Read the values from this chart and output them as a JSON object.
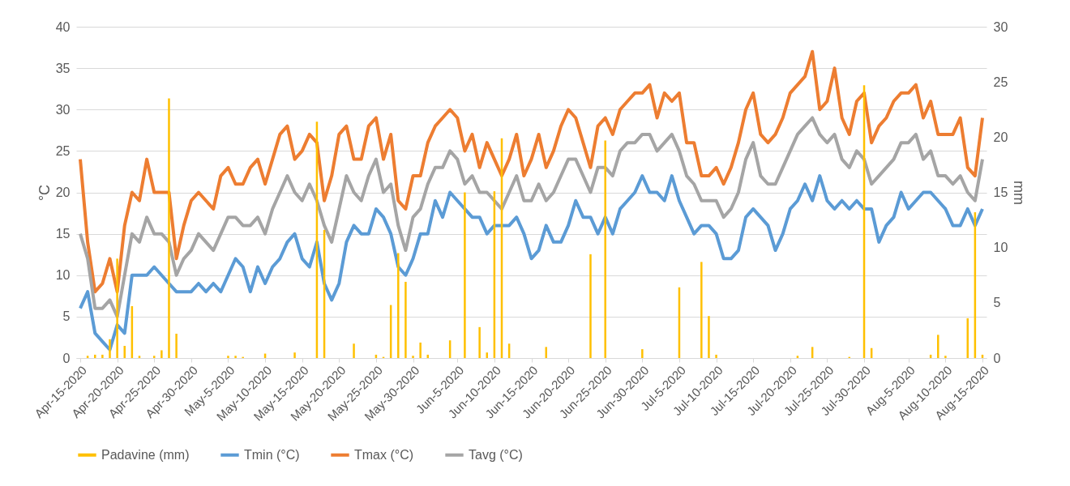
{
  "chart_data": {
    "type": "line",
    "ylabel": "°C",
    "y2label": "mm",
    "x": [
      "2020-04-15",
      "2020-04-16",
      "2020-04-17",
      "2020-04-18",
      "2020-04-19",
      "2020-04-20",
      "2020-04-21",
      "2020-04-22",
      "2020-04-23",
      "2020-04-24",
      "2020-04-25",
      "2020-04-26",
      "2020-04-27",
      "2020-04-28",
      "2020-04-29",
      "2020-04-30",
      "2020-05-01",
      "2020-05-02",
      "2020-05-03",
      "2020-05-04",
      "2020-05-05",
      "2020-05-06",
      "2020-05-07",
      "2020-05-08",
      "2020-05-09",
      "2020-05-10",
      "2020-05-11",
      "2020-05-12",
      "2020-05-13",
      "2020-05-14",
      "2020-05-15",
      "2020-05-16",
      "2020-05-17",
      "2020-05-18",
      "2020-05-19",
      "2020-05-20",
      "2020-05-21",
      "2020-05-22",
      "2020-05-23",
      "2020-05-24",
      "2020-05-25",
      "2020-05-26",
      "2020-05-27",
      "2020-05-28",
      "2020-05-29",
      "2020-05-30",
      "2020-05-31",
      "2020-06-01",
      "2020-06-02",
      "2020-06-03",
      "2020-06-04",
      "2020-06-05",
      "2020-06-06",
      "2020-06-07",
      "2020-06-08",
      "2020-06-09",
      "2020-06-10",
      "2020-06-11",
      "2020-06-12",
      "2020-06-13",
      "2020-06-14",
      "2020-06-15",
      "2020-06-16",
      "2020-06-17",
      "2020-06-18",
      "2020-06-19",
      "2020-06-20",
      "2020-06-21",
      "2020-06-22",
      "2020-06-23",
      "2020-06-24",
      "2020-06-25",
      "2020-06-26",
      "2020-06-27",
      "2020-06-28",
      "2020-06-29",
      "2020-06-30",
      "2020-07-01",
      "2020-07-02",
      "2020-07-03",
      "2020-07-04",
      "2020-07-05",
      "2020-07-06",
      "2020-07-07",
      "2020-07-08",
      "2020-07-09",
      "2020-07-10",
      "2020-07-11",
      "2020-07-12",
      "2020-07-13",
      "2020-07-14",
      "2020-07-15",
      "2020-07-16",
      "2020-07-17",
      "2020-07-18",
      "2020-07-19",
      "2020-07-20",
      "2020-07-21",
      "2020-07-22",
      "2020-07-23",
      "2020-07-24",
      "2020-07-25",
      "2020-07-26",
      "2020-07-27",
      "2020-07-28",
      "2020-07-29",
      "2020-07-30",
      "2020-07-31",
      "2020-08-01",
      "2020-08-02",
      "2020-08-03",
      "2020-08-04",
      "2020-08-05",
      "2020-08-06",
      "2020-08-07",
      "2020-08-08",
      "2020-08-09",
      "2020-08-10",
      "2020-08-11",
      "2020-08-12",
      "2020-08-13",
      "2020-08-14",
      "2020-08-15"
    ],
    "series": [
      {
        "name": "Padavine (mm)",
        "type": "bar",
        "axis": "y2",
        "color": "#ffc000",
        "values": [
          null,
          0.2,
          0.3,
          0.3,
          1.7,
          9,
          1.1,
          4.7,
          0.2,
          null,
          0.2,
          0.7,
          23.5,
          2.2,
          null,
          null,
          null,
          null,
          null,
          null,
          0.2,
          0.2,
          0.1,
          null,
          null,
          0.4,
          null,
          null,
          null,
          0.5,
          null,
          null,
          21.4,
          11.6,
          null,
          null,
          null,
          1.3,
          null,
          null,
          0.3,
          0.1,
          4.8,
          9.5,
          6.9,
          0.2,
          1.4,
          0.3,
          null,
          null,
          1.6,
          null,
          15,
          null,
          2.8,
          0.5,
          15.1,
          19.9,
          1.3,
          null,
          null,
          null,
          null,
          1,
          null,
          null,
          null,
          null,
          null,
          9.4,
          null,
          19.7,
          null,
          null,
          null,
          null,
          0.8,
          null,
          null,
          null,
          null,
          6.4,
          null,
          null,
          8.7,
          3.8,
          0.3,
          null,
          null,
          null,
          null,
          null,
          null,
          null,
          null,
          null,
          null,
          0.2,
          null,
          1,
          null,
          null,
          null,
          null,
          0.1,
          null,
          24.7,
          0.9,
          null,
          null,
          null,
          null,
          null,
          null,
          null,
          0.3,
          2.1,
          0.2,
          null,
          null,
          3.6,
          13.2,
          0.3
        ]
      },
      {
        "name": "Tmin (°C)",
        "color": "#5b9bd5",
        "values": [
          6,
          8,
          3,
          2,
          1,
          4,
          3,
          10,
          10,
          10,
          11,
          10,
          9,
          8,
          8,
          8,
          9,
          8,
          9,
          8,
          10,
          12,
          11,
          8,
          11,
          9,
          11,
          12,
          14,
          15,
          12,
          11,
          14,
          9,
          7,
          9,
          14,
          16,
          15,
          15,
          18,
          17,
          15,
          11,
          10,
          12,
          15,
          15,
          19,
          17,
          20,
          19,
          18,
          17,
          17,
          15,
          16,
          16,
          16,
          17,
          15,
          12,
          13,
          16,
          14,
          14,
          16,
          19,
          17,
          17,
          15,
          17,
          15,
          18,
          19,
          20,
          22,
          20,
          20,
          19,
          22,
          19,
          17,
          15,
          16,
          16,
          15,
          12,
          12,
          13,
          17,
          18,
          17,
          16,
          13,
          15,
          18,
          19,
          21,
          19,
          22,
          19,
          18,
          19,
          18,
          19,
          18,
          18,
          14,
          16,
          17,
          20,
          18,
          19,
          20,
          20,
          19,
          18,
          16,
          16,
          18,
          16,
          18
        ]
      },
      {
        "name": "Tmax (°C)",
        "color": "#ed7d31",
        "values": [
          24,
          14,
          8,
          9,
          12,
          8,
          16,
          20,
          19,
          24,
          20,
          20,
          20,
          12,
          16,
          19,
          20,
          19,
          18,
          22,
          23,
          21,
          21,
          23,
          24,
          21,
          24,
          27,
          28,
          24,
          25,
          27,
          26,
          19,
          22,
          27,
          28,
          24,
          24,
          28,
          29,
          24,
          27,
          19,
          18,
          22,
          22,
          26,
          28,
          29,
          30,
          29,
          25,
          27,
          23,
          26,
          24,
          22,
          24,
          27,
          22,
          24,
          27,
          23,
          25,
          28,
          30,
          29,
          26,
          23,
          28,
          29,
          27,
          30,
          31,
          32,
          32,
          33,
          29,
          32,
          31,
          32,
          26,
          26,
          22,
          22,
          23,
          21,
          23,
          26,
          30,
          32,
          27,
          26,
          27,
          29,
          32,
          33,
          34,
          37,
          30,
          31,
          35,
          29,
          27,
          31,
          32,
          26,
          28,
          29,
          31,
          32,
          32,
          33,
          29,
          31,
          27,
          27,
          27,
          29,
          23,
          22,
          29
        ]
      },
      {
        "name": "Tavg (°C)",
        "color": "#a5a5a5",
        "values": [
          15,
          12,
          6,
          6,
          7,
          5,
          10,
          15,
          14,
          17,
          15,
          15,
          14,
          10,
          12,
          13,
          15,
          14,
          13,
          15,
          17,
          17,
          16,
          16,
          17,
          15,
          18,
          20,
          22,
          20,
          19,
          21,
          19,
          16,
          14,
          18,
          22,
          20,
          19,
          22,
          24,
          20,
          21,
          16,
          13,
          17,
          18,
          21,
          23,
          23,
          25,
          24,
          21,
          22,
          20,
          20,
          19,
          18,
          20,
          22,
          19,
          19,
          21,
          19,
          20,
          22,
          24,
          24,
          22,
          20,
          23,
          23,
          22,
          25,
          26,
          26,
          27,
          27,
          25,
          26,
          27,
          25,
          22,
          21,
          19,
          19,
          19,
          17,
          18,
          20,
          24,
          26,
          22,
          21,
          21,
          23,
          25,
          27,
          28,
          29,
          27,
          26,
          27,
          24,
          23,
          25,
          24,
          21,
          22,
          23,
          24,
          26,
          26,
          27,
          24,
          25,
          22,
          22,
          21,
          22,
          20,
          19,
          24
        ]
      }
    ],
    "xlim": [
      "2020-04-15",
      "2020-08-15"
    ],
    "xticks": [
      {
        "value": "2020-04-15",
        "label": "Apr-15-2020"
      },
      {
        "value": "2020-04-20",
        "label": "Apr-20-2020"
      },
      {
        "value": "2020-04-25",
        "label": "Apr-25-2020"
      },
      {
        "value": "2020-04-30",
        "label": "Apr-30-2020"
      },
      {
        "value": "2020-05-05",
        "label": "May-5-2020"
      },
      {
        "value": "2020-05-10",
        "label": "May-10-2020"
      },
      {
        "value": "2020-05-15",
        "label": "May-15-2020"
      },
      {
        "value": "2020-05-20",
        "label": "May-20-2020"
      },
      {
        "value": "2020-05-25",
        "label": "May-25-2020"
      },
      {
        "value": "2020-05-30",
        "label": "May-30-2020"
      },
      {
        "value": "2020-06-05",
        "label": "Jun-5-2020"
      },
      {
        "value": "2020-06-10",
        "label": "Jun-10-2020"
      },
      {
        "value": "2020-06-15",
        "label": "Jun-15-2020"
      },
      {
        "value": "2020-06-20",
        "label": "Jun-20-2020"
      },
      {
        "value": "2020-06-25",
        "label": "Jun-25-2020"
      },
      {
        "value": "2020-06-30",
        "label": "Jun-30-2020"
      },
      {
        "value": "2020-07-05",
        "label": "Jul-5-2020"
      },
      {
        "value": "2020-07-10",
        "label": "Jul-10-2020"
      },
      {
        "value": "2020-07-15",
        "label": "Jul-15-2020"
      },
      {
        "value": "2020-07-20",
        "label": "Jul-20-2020"
      },
      {
        "value": "2020-07-25",
        "label": "Jul-25-2020"
      },
      {
        "value": "2020-07-30",
        "label": "Jul-30-2020"
      },
      {
        "value": "2020-08-05",
        "label": "Aug-5-2020"
      },
      {
        "value": "2020-08-10",
        "label": "Aug-10-2020"
      },
      {
        "value": "2020-08-15",
        "label": "Aug-15-2020"
      }
    ],
    "ylim": [
      0,
      40
    ],
    "yticks": [
      0,
      5,
      10,
      15,
      20,
      25,
      30,
      35,
      40
    ],
    "y2lim": [
      0,
      30
    ],
    "y2ticks": [
      0,
      5,
      10,
      15,
      20,
      25,
      30
    ],
    "grid": "y",
    "legend": "bottom",
    "line_style": "solid"
  }
}
